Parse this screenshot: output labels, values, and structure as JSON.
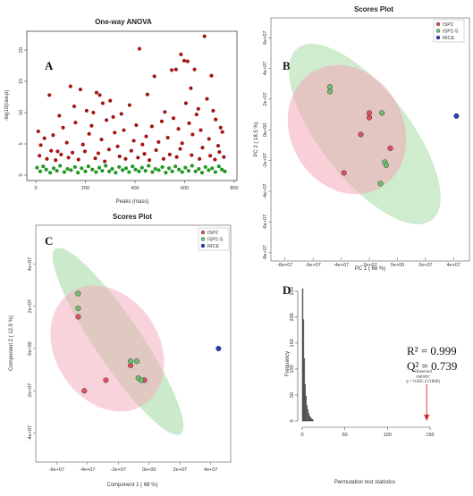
{
  "chart_data": [
    {
      "id": "A",
      "type": "scatter",
      "letter": "A",
      "title": "One-way ANOVA",
      "xlabel": "Peaks (mass)",
      "ylabel": "-log10(raw.p)",
      "xlim": [
        0,
        800
      ],
      "ylim": [
        0,
        22
      ],
      "xticks": [
        0,
        200,
        400,
        600,
        800
      ],
      "yticks": [
        0,
        5,
        10,
        15,
        20
      ],
      "colors": {
        "significant": "#b01010",
        "nonsignificant": "#1aa01a"
      },
      "points_significant": [
        [
          10,
          7.0
        ],
        [
          55,
          12.8
        ],
        [
          95,
          9.5
        ],
        [
          140,
          14.2
        ],
        [
          155,
          11.0
        ],
        [
          180,
          13.7
        ],
        [
          205,
          10.3
        ],
        [
          232,
          10.0
        ],
        [
          245,
          13.2
        ],
        [
          258,
          12.8
        ],
        [
          270,
          11.5
        ],
        [
          300,
          11.9
        ],
        [
          312,
          9.3
        ],
        [
          345,
          9.8
        ],
        [
          378,
          11.2
        ],
        [
          418,
          20.2
        ],
        [
          450,
          12.9
        ],
        [
          478,
          15.8
        ],
        [
          520,
          10.1
        ],
        [
          548,
          16.8
        ],
        [
          565,
          16.9
        ],
        [
          585,
          19.3
        ],
        [
          598,
          18.3
        ],
        [
          612,
          18.2
        ],
        [
          625,
          13.9
        ],
        [
          640,
          16.9
        ],
        [
          655,
          10.6
        ],
        [
          680,
          22.2
        ],
        [
          708,
          15.9
        ],
        [
          725,
          8.9
        ],
        [
          745,
          7.6
        ],
        [
          20,
          4.8
        ],
        [
          35,
          5.9
        ],
        [
          70,
          6.4
        ],
        [
          88,
          3.8
        ],
        [
          110,
          7.6
        ],
        [
          125,
          5.2
        ],
        [
          160,
          8.4
        ],
        [
          190,
          4.9
        ],
        [
          215,
          6.6
        ],
        [
          225,
          7.9
        ],
        [
          265,
          5.7
        ],
        [
          285,
          8.8
        ],
        [
          318,
          6.8
        ],
        [
          330,
          4.6
        ],
        [
          355,
          7.2
        ],
        [
          395,
          5.5
        ],
        [
          405,
          8.0
        ],
        [
          430,
          4.9
        ],
        [
          445,
          6.2
        ],
        [
          468,
          7.8
        ],
        [
          495,
          5.3
        ],
        [
          508,
          8.6
        ],
        [
          532,
          6.0
        ],
        [
          555,
          9.1
        ],
        [
          575,
          7.4
        ],
        [
          590,
          5.1
        ],
        [
          605,
          11.5
        ],
        [
          618,
          8.3
        ],
        [
          632,
          6.5
        ],
        [
          648,
          9.7
        ],
        [
          665,
          7.2
        ],
        [
          690,
          12.2
        ],
        [
          698,
          5.8
        ],
        [
          715,
          10.3
        ],
        [
          735,
          4.7
        ],
        [
          752,
          6.9
        ],
        [
          15,
          3.1
        ],
        [
          45,
          2.6
        ],
        [
          62,
          3.9
        ],
        [
          80,
          2.4
        ],
        [
          102,
          3.3
        ],
        [
          132,
          2.8
        ],
        [
          148,
          3.6
        ],
        [
          172,
          2.5
        ],
        [
          198,
          3.8
        ],
        [
          240,
          2.7
        ],
        [
          252,
          3.5
        ],
        [
          278,
          2.2
        ],
        [
          295,
          4.1
        ],
        [
          338,
          3.0
        ],
        [
          362,
          2.6
        ],
        [
          385,
          3.9
        ],
        [
          412,
          2.8
        ],
        [
          438,
          3.4
        ],
        [
          458,
          2.4
        ],
        [
          485,
          4.0
        ],
        [
          515,
          2.6
        ],
        [
          540,
          3.3
        ],
        [
          568,
          2.9
        ],
        [
          582,
          4.2
        ],
        [
          628,
          3.2
        ],
        [
          660,
          2.6
        ],
        [
          672,
          4.4
        ],
        [
          703,
          3.1
        ],
        [
          722,
          2.5
        ],
        [
          740,
          3.7
        ],
        [
          758,
          2.9
        ]
      ],
      "points_nonsignificant": [
        [
          5,
          1.2
        ],
        [
          18,
          0.6
        ],
        [
          30,
          1.4
        ],
        [
          42,
          0.9
        ],
        [
          58,
          0.4
        ],
        [
          72,
          1.1
        ],
        [
          85,
          0.7
        ],
        [
          98,
          1.5
        ],
        [
          115,
          0.5
        ],
        [
          128,
          1.0
        ],
        [
          142,
          0.8
        ],
        [
          158,
          1.3
        ],
        [
          170,
          0.4
        ],
        [
          185,
          1.1
        ],
        [
          200,
          0.6
        ],
        [
          212,
          1.4
        ],
        [
          228,
          0.9
        ],
        [
          243,
          0.5
        ],
        [
          256,
          1.2
        ],
        [
          268,
          0.7
        ],
        [
          282,
          1.5
        ],
        [
          296,
          0.6
        ],
        [
          308,
          1.0
        ],
        [
          322,
          0.4
        ],
        [
          336,
          1.3
        ],
        [
          350,
          0.8
        ],
        [
          364,
          1.1
        ],
        [
          376,
          0.5
        ],
        [
          390,
          1.4
        ],
        [
          402,
          0.9
        ],
        [
          416,
          0.6
        ],
        [
          428,
          1.2
        ],
        [
          442,
          0.7
        ],
        [
          455,
          1.5
        ],
        [
          470,
          0.5
        ],
        [
          482,
          1.0
        ],
        [
          496,
          0.8
        ],
        [
          510,
          1.3
        ],
        [
          524,
          0.4
        ],
        [
          537,
          1.1
        ],
        [
          550,
          0.6
        ],
        [
          563,
          1.4
        ],
        [
          577,
          0.9
        ],
        [
          590,
          0.5
        ],
        [
          603,
          1.2
        ],
        [
          616,
          0.7
        ],
        [
          630,
          1.5
        ],
        [
          644,
          0.6
        ],
        [
          657,
          1.0
        ],
        [
          670,
          0.4
        ],
        [
          684,
          1.3
        ],
        [
          697,
          0.8
        ],
        [
          711,
          1.1
        ],
        [
          724,
          0.5
        ],
        [
          738,
          1.4
        ],
        [
          750,
          0.9
        ],
        [
          762,
          0.6
        ]
      ]
    },
    {
      "id": "B",
      "type": "scatter",
      "letter": "B",
      "title": "Scores Plot",
      "xlabel": "PC 1 ( 68 %)",
      "ylabel": "PC 2 ( 18.5 %)",
      "xlim": [
        -90000000.0,
        50000000.0
      ],
      "ylim": [
        -90000000.0,
        70000000.0
      ],
      "xtick_labels": [
        "-8e+07",
        "-6e+07",
        "-4e+07",
        "-2e+07",
        "0e+00",
        "2e+07",
        "4e+07"
      ],
      "xtick_values": [
        -80000000.0,
        -60000000.0,
        -40000000.0,
        -20000000.0,
        0,
        20000000.0,
        40000000.0
      ],
      "ytick_labels": [
        "-8e+07",
        "-6e+07",
        "-4e+07",
        "-2e+07",
        "0e+00",
        "2e+07",
        "4e+07",
        "6e+07"
      ],
      "ytick_values": [
        -80000000.0,
        -60000000.0,
        -40000000.0,
        -20000000.0,
        0,
        20000000.0,
        40000000.0,
        60000000.0
      ],
      "legend": [
        "ISP2",
        "ISP2-S",
        "RICE"
      ],
      "legend_position": "top-right",
      "series": [
        {
          "name": "ISP2",
          "color": "#e05060",
          "points": [
            [
              -38000000.0,
              -28000000.0
            ],
            [
              -26000000.0,
              -3000000.0
            ],
            [
              -20000000.0,
              8000000.0
            ],
            [
              -20000000.0,
              11000000.0
            ],
            [
              -5000000.0,
              -12000000.0
            ]
          ]
        },
        {
          "name": "ISP2-S",
          "color": "#70c070",
          "points": [
            [
              -48000000.0,
              25000000.0
            ],
            [
              -48000000.0,
              28000000.0
            ],
            [
              -11000000.0,
              11000000.0
            ],
            [
              -9000000.0,
              -21000000.0
            ],
            [
              -8000000.0,
              -23000000.0
            ],
            [
              -12000000.0,
              -35000000.0
            ]
          ]
        },
        {
          "name": "RICE",
          "color": "#2040c0",
          "points": [
            [
              42000000.0,
              9000000.0
            ]
          ]
        }
      ]
    },
    {
      "id": "C",
      "type": "scatter",
      "letter": "C",
      "title": "Scores Plot",
      "xlabel": "Component 1 ( 68 %)",
      "ylabel": "Component 2 ( 12.9 %)",
      "xlim": [
        -70000000.0,
        50000000.0
      ],
      "ylim": [
        -55000000.0,
        55000000.0
      ],
      "xtick_labels": [
        "-6e+07",
        "-4e+07",
        "-2e+07",
        "0e+00",
        "2e+07",
        "4e+07"
      ],
      "xtick_values": [
        -60000000.0,
        -40000000.0,
        -20000000.0,
        0,
        20000000.0,
        40000000.0
      ],
      "ytick_labels": [
        "-4e+07",
        "-2e+07",
        "0e+00",
        "2e+07",
        "4e+07"
      ],
      "ytick_values": [
        -40000000.0,
        -20000000.0,
        0,
        20000000.0,
        40000000.0
      ],
      "legend": [
        "ISP2",
        "ISP2-S",
        "RICE"
      ],
      "legend_position": "top-right",
      "series": [
        {
          "name": "ISP2",
          "color": "#e05060",
          "points": [
            [
              -46000000.0,
              15000000.0
            ],
            [
              -42000000.0,
              -20000000.0
            ],
            [
              -28000000.0,
              -15000000.0
            ],
            [
              -12000000.0,
              -8000000.0
            ],
            [
              -3000000.0,
              -15000000.0
            ]
          ]
        },
        {
          "name": "ISP2-S",
          "color": "#70c070",
          "points": [
            [
              -46000000.0,
              26000000.0
            ],
            [
              -46000000.0,
              19000000.0
            ],
            [
              -12000000.0,
              -6000000.0
            ],
            [
              -8000000.0,
              -6000000.0
            ],
            [
              -7000000.0,
              -14000000.0
            ],
            [
              -5000000.0,
              -15000000.0
            ]
          ]
        },
        {
          "name": "RICE",
          "color": "#2040c0",
          "points": [
            [
              45000000.0,
              0.0
            ]
          ]
        }
      ]
    },
    {
      "id": "D",
      "type": "bar",
      "letter": "D",
      "xlabel": "Permutation test statistics",
      "ylabel": "Frequency",
      "xlim": [
        0,
        150
      ],
      "ylim": [
        0,
        260
      ],
      "xticks": [
        0,
        50,
        100,
        150
      ],
      "yticks": [
        0,
        50,
        100,
        150,
        200,
        250
      ],
      "bins": [
        [
          0,
          1,
          255
        ],
        [
          1,
          2,
          195
        ],
        [
          2,
          3,
          120
        ],
        [
          3,
          4,
          70
        ],
        [
          4,
          5,
          48
        ],
        [
          5,
          6,
          30
        ],
        [
          6,
          7,
          22
        ],
        [
          7,
          8,
          15
        ],
        [
          8,
          9,
          10
        ],
        [
          9,
          10,
          7
        ],
        [
          10,
          11,
          5
        ],
        [
          11,
          12,
          3
        ],
        [
          12,
          13,
          2
        ]
      ],
      "observed": 146,
      "observed_label": [
        "Observed",
        "statistic",
        "p = 0.005 (5/1000)"
      ],
      "r2": "R² = 0.999",
      "q2": "Q² = 0.739"
    }
  ]
}
